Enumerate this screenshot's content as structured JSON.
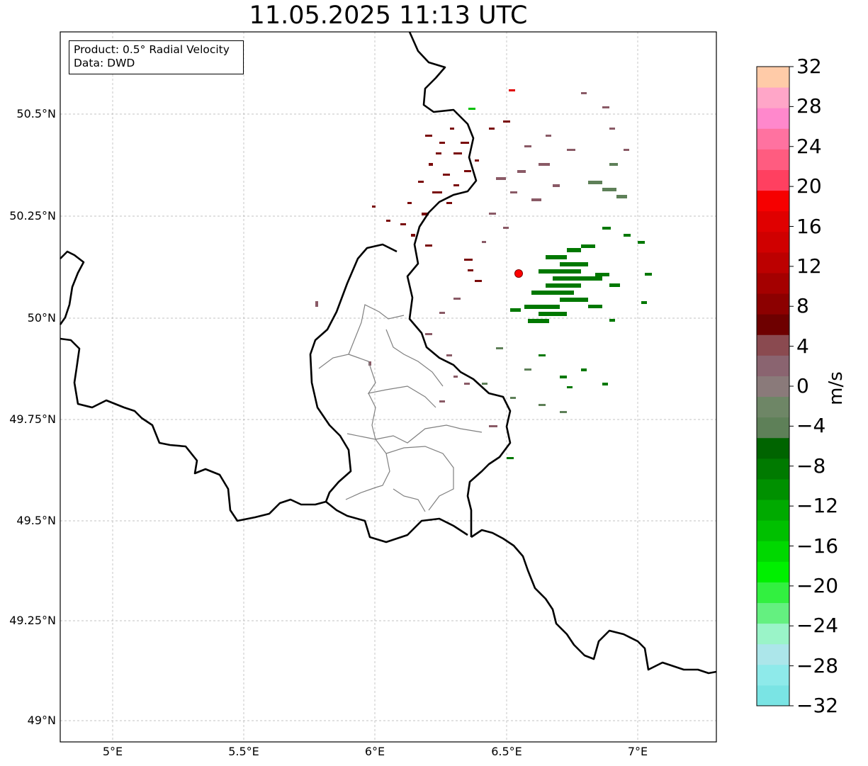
{
  "title": "11.05.2025 11:13 UTC",
  "info": {
    "product": "Product: 0.5° Radial Velocity",
    "data_source": "Data: DWD"
  },
  "map": {
    "extent": {
      "lon_min": 4.8,
      "lon_max": 7.3,
      "lat_min": 48.95,
      "lat_max": 50.7
    },
    "lat_ticks": [
      {
        "value": 50.5,
        "label": "50.5°N"
      },
      {
        "value": 50.25,
        "label": "50.25°N"
      },
      {
        "value": 50.0,
        "label": "50°N"
      },
      {
        "value": 49.75,
        "label": "49.75°N"
      },
      {
        "value": 49.5,
        "label": "49.5°N"
      },
      {
        "value": 49.25,
        "label": "49.25°N"
      },
      {
        "value": 49.0,
        "label": "49°N"
      }
    ],
    "lon_ticks": [
      {
        "value": 5.0,
        "label": "5°E"
      },
      {
        "value": 5.5,
        "label": "5.5°E"
      },
      {
        "value": 6.0,
        "label": "6°E"
      },
      {
        "value": 6.5,
        "label": "6.5°E"
      },
      {
        "value": 7.0,
        "label": "7°E"
      }
    ],
    "radar_site": {
      "lon": 6.55,
      "lat": 50.11,
      "color": "#ff0000"
    },
    "grid": true
  },
  "colorbar": {
    "label": "m/s",
    "min": -32,
    "max": 32,
    "step": 4,
    "tick_labels": [
      "32",
      "28",
      "24",
      "20",
      "16",
      "12",
      "8",
      "4",
      "0",
      "−4",
      "−8",
      "−12",
      "−16",
      "−20",
      "−24",
      "−28",
      "−32"
    ],
    "colors_bottom_to_top": [
      "#7ae4e4",
      "#8eeaea",
      "#ace6ea",
      "#9af4c8",
      "#64f080",
      "#32f040",
      "#00f000",
      "#00d800",
      "#00c000",
      "#00aa00",
      "#009000",
      "#007a00",
      "#006400",
      "#5e8058",
      "#6e8666",
      "#8a7a7a",
      "#8a6470",
      "#8a4a50",
      "#6e0000",
      "#8c0000",
      "#a40000",
      "#bc0000",
      "#d00000",
      "#e00000",
      "#f60000",
      "#ff4060",
      "#ff5c80",
      "#ff72a0",
      "#ff88cc",
      "#ffa6c8",
      "#ffcba8"
    ]
  }
}
